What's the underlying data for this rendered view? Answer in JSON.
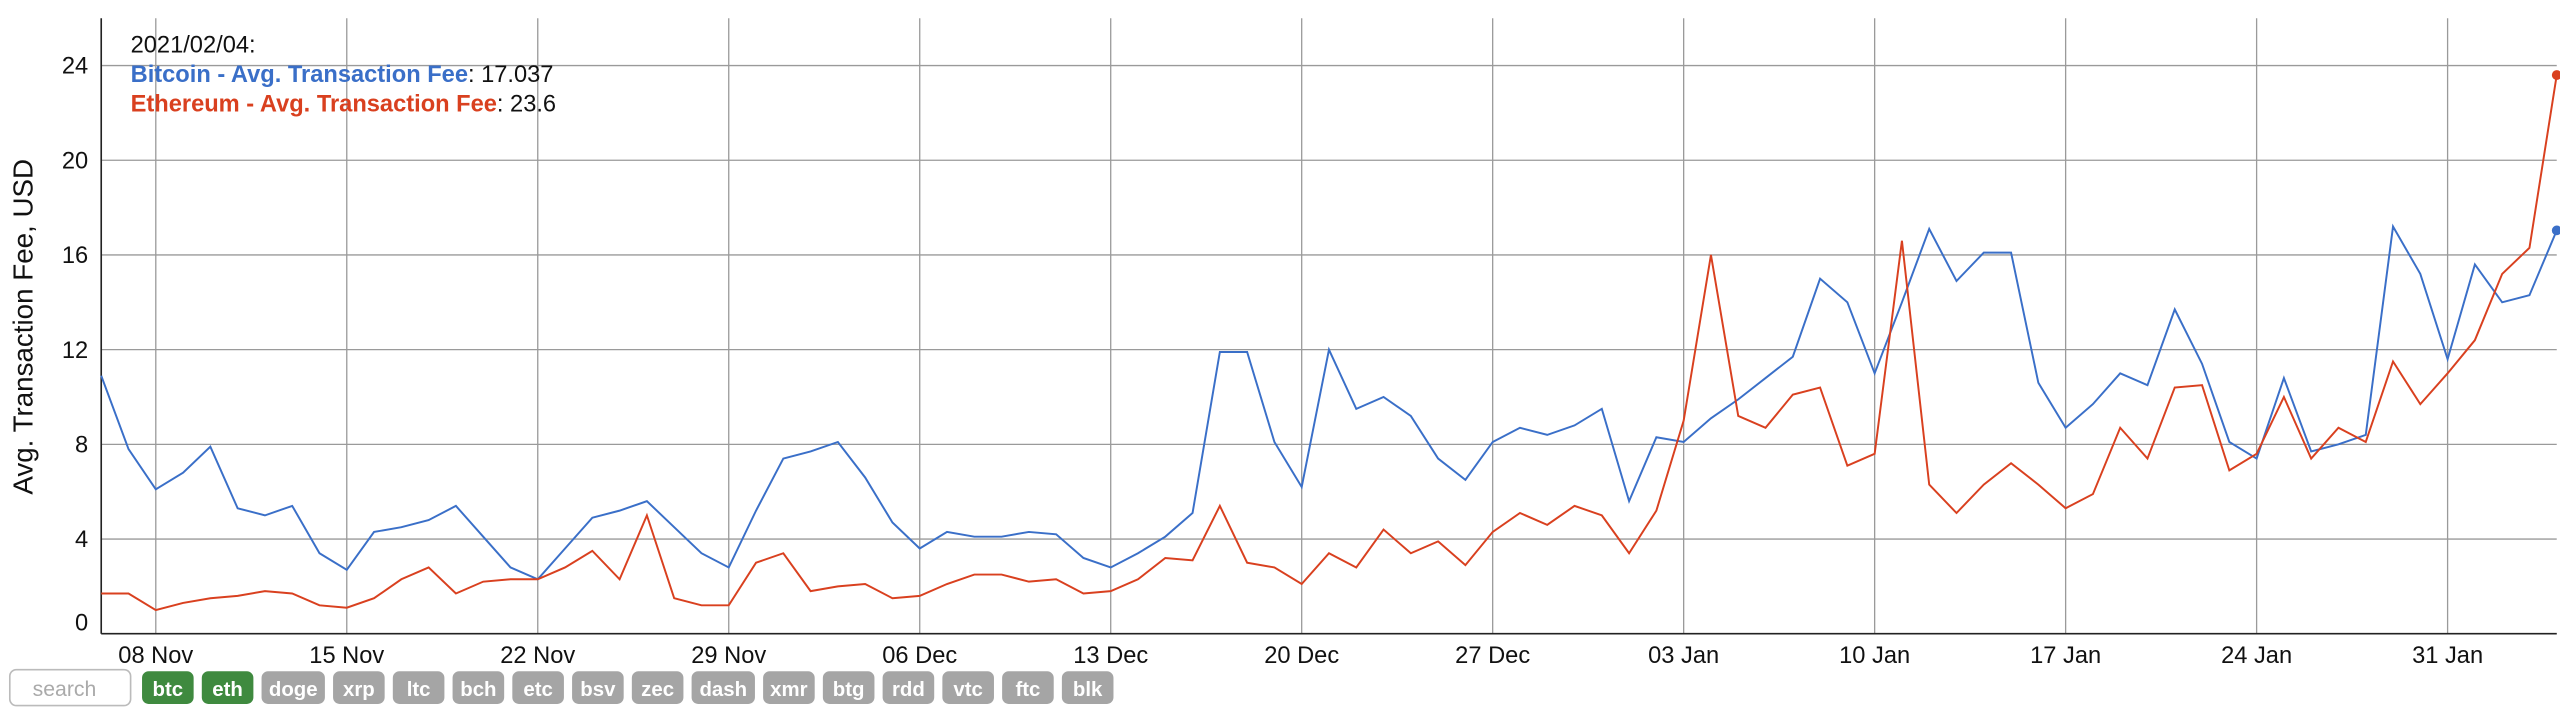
{
  "chart_data": {
    "type": "line",
    "y_label": "Avg. Transaction Fee, USD",
    "categories": [
      null,
      null,
      "08 Nov",
      null,
      null,
      null,
      null,
      null,
      null,
      "15 Nov",
      null,
      null,
      null,
      null,
      null,
      null,
      "22 Nov",
      null,
      null,
      null,
      null,
      null,
      null,
      "29 Nov",
      null,
      null,
      null,
      null,
      null,
      null,
      "06 Dec",
      null,
      null,
      null,
      null,
      null,
      null,
      "13 Dec",
      null,
      null,
      null,
      null,
      null,
      null,
      "20 Dec",
      null,
      null,
      null,
      null,
      null,
      null,
      "27 Dec",
      null,
      null,
      null,
      null,
      null,
      null,
      "03 Jan",
      null,
      null,
      null,
      null,
      null,
      null,
      "10 Jan",
      null,
      null,
      null,
      null,
      null,
      null,
      "17 Jan",
      null,
      null,
      null,
      null,
      null,
      null,
      "24 Jan",
      null,
      null,
      null,
      null,
      null,
      null,
      "31 Jan",
      null,
      null,
      null,
      null
    ],
    "series": [
      {
        "name": "Bitcoin - Avg. Transaction Fee",
        "color": "#3a6fc8",
        "values": [
          10.9,
          7.8,
          6.1,
          6.8,
          7.9,
          5.3,
          5.0,
          5.4,
          3.4,
          2.7,
          4.3,
          4.5,
          4.8,
          5.4,
          4.1,
          2.8,
          2.3,
          3.6,
          4.9,
          5.2,
          5.6,
          4.5,
          3.4,
          2.8,
          5.2,
          7.4,
          7.7,
          8.1,
          6.6,
          4.7,
          3.6,
          4.3,
          4.1,
          4.1,
          4.3,
          4.2,
          3.2,
          2.8,
          3.4,
          4.1,
          5.1,
          11.9,
          11.9,
          8.1,
          6.2,
          12.0,
          9.5,
          10.0,
          9.2,
          7.4,
          6.5,
          8.1,
          8.7,
          8.4,
          8.8,
          9.5,
          5.6,
          8.3,
          8.1,
          9.1,
          9.9,
          10.8,
          11.7,
          15.0,
          14.0,
          11.0,
          14.0,
          17.1,
          14.9,
          16.1,
          16.1,
          10.6,
          8.7,
          9.7,
          11.0,
          10.5,
          13.7,
          11.4,
          8.1,
          7.4,
          10.8,
          7.7,
          8.0,
          8.4,
          17.2,
          15.2,
          11.6,
          15.6,
          14.0,
          14.3,
          17.037
        ]
      },
      {
        "name": "Ethereum - Avg. Transaction Fee",
        "color": "#d9401f",
        "values": [
          1.7,
          1.7,
          1.0,
          1.3,
          1.5,
          1.6,
          1.8,
          1.7,
          1.2,
          1.1,
          1.5,
          2.3,
          2.8,
          1.7,
          2.2,
          2.3,
          2.3,
          2.8,
          3.5,
          2.3,
          5.0,
          1.5,
          1.2,
          1.2,
          3.0,
          3.4,
          1.8,
          2.0,
          2.1,
          1.5,
          1.6,
          2.1,
          2.5,
          2.5,
          2.2,
          2.3,
          1.7,
          1.8,
          2.3,
          3.2,
          3.1,
          5.4,
          3.0,
          2.8,
          2.1,
          3.4,
          2.8,
          4.4,
          3.4,
          3.9,
          2.9,
          4.3,
          5.1,
          4.6,
          5.4,
          5.0,
          3.4,
          5.2,
          9.0,
          16.0,
          9.2,
          8.7,
          10.1,
          10.4,
          7.1,
          7.6,
          16.6,
          6.3,
          5.1,
          6.3,
          7.2,
          6.3,
          5.3,
          5.9,
          8.7,
          7.4,
          10.4,
          10.5,
          6.9,
          7.6,
          10.0,
          7.4,
          8.7,
          8.1,
          11.5,
          9.7,
          11.0,
          12.4,
          15.2,
          16.3,
          23.6
        ]
      }
    ],
    "ylim": [
      0,
      26
    ],
    "yticks": [
      0,
      4,
      8,
      12,
      16,
      20,
      24
    ],
    "grid": true,
    "tooltip": {
      "date": "2021/02/04:",
      "separator": ":"
    }
  },
  "controls": {
    "search_placeholder": "search",
    "buttons": [
      {
        "label": "btc",
        "active": true
      },
      {
        "label": "eth",
        "active": true
      },
      {
        "label": "doge",
        "active": false
      },
      {
        "label": "xrp",
        "active": false
      },
      {
        "label": "ltc",
        "active": false
      },
      {
        "label": "bch",
        "active": false
      },
      {
        "label": "etc",
        "active": false
      },
      {
        "label": "bsv",
        "active": false
      },
      {
        "label": "zec",
        "active": false
      },
      {
        "label": "dash",
        "active": false
      },
      {
        "label": "xmr",
        "active": false
      },
      {
        "label": "btg",
        "active": false
      },
      {
        "label": "rdd",
        "active": false
      },
      {
        "label": "vtc",
        "active": false
      },
      {
        "label": "ftc",
        "active": false
      },
      {
        "label": "blk",
        "active": false
      }
    ]
  }
}
